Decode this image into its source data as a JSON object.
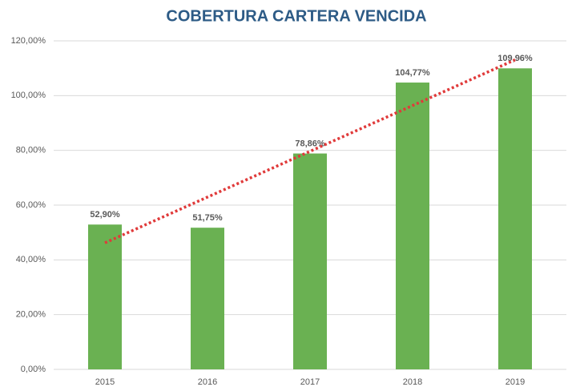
{
  "chart_data": {
    "type": "bar",
    "title": "COBERTURA CARTERA VENCIDA",
    "categories": [
      "2015",
      "2016",
      "2017",
      "2018",
      "2019"
    ],
    "values": [
      52.9,
      51.75,
      78.86,
      104.77,
      109.96
    ],
    "value_labels": [
      "52,90%",
      "51,75%",
      "78,86%",
      "104,77%",
      "109,96%"
    ],
    "color": "#6ab152",
    "ylim": [
      0,
      120
    ],
    "yticks": [
      {
        "value": 0,
        "label": "0,00%"
      },
      {
        "value": 20,
        "label": "20,00%"
      },
      {
        "value": 40,
        "label": "40,00%"
      },
      {
        "value": 60,
        "label": "60,00%"
      },
      {
        "value": 80,
        "label": "80,00%"
      },
      {
        "value": 100,
        "label": "100,00%"
      },
      {
        "value": 120,
        "label": "120,00%"
      }
    ],
    "grid": true,
    "trendline": "linear",
    "trendline_color": "#e03a3a"
  }
}
